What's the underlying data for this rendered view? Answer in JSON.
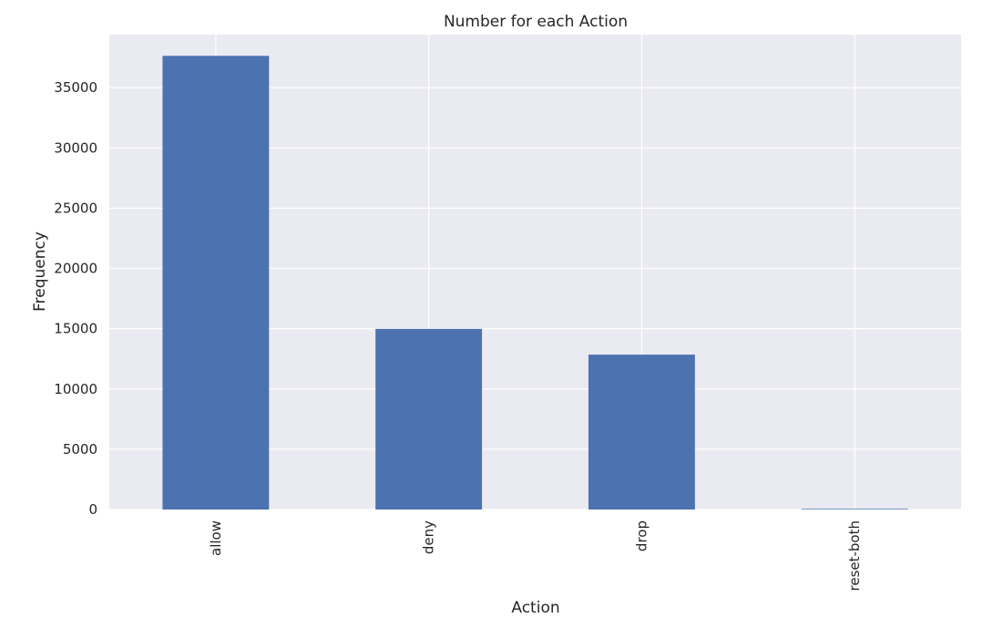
{
  "chart_data": {
    "type": "bar",
    "title": "Number for each Action",
    "xlabel": "Action",
    "ylabel": "Frequency",
    "categories": [
      "allow",
      "deny",
      "drop",
      "reset-both"
    ],
    "values": [
      37640,
      14987,
      12851,
      54
    ],
    "ylim": [
      0,
      39400
    ],
    "yticks": [
      0,
      5000,
      10000,
      15000,
      20000,
      25000,
      30000,
      35000
    ],
    "ytick_labels": [
      "0",
      "5000",
      "10000",
      "15000",
      "20000",
      "25000",
      "30000",
      "35000"
    ],
    "grid": true,
    "legend": "none",
    "colors": {
      "bar": "#4c72b0",
      "plot_background": "#eaeaf2",
      "grid": "#ffffff",
      "text": "#262626"
    }
  }
}
